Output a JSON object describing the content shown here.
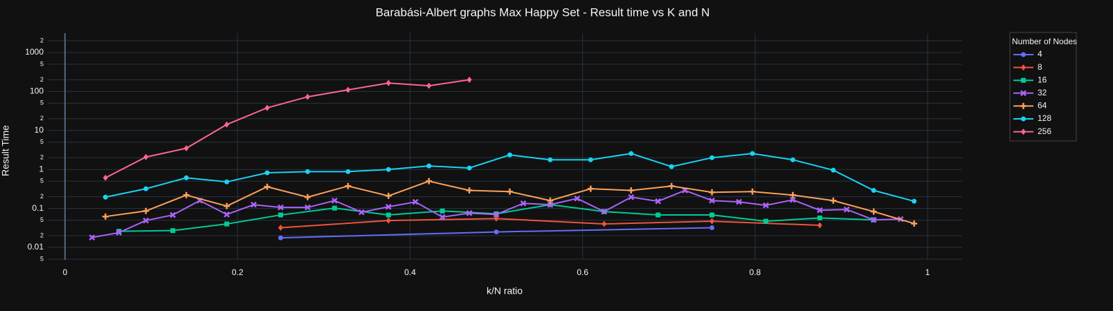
{
  "chart_data": {
    "type": "line",
    "title": "Barabási-Albert graphs Max Happy Set - Result time vs K and N",
    "x_label": "k/N ratio",
    "y_label": "Result Time",
    "legend_title": "Number of Nodes",
    "legend": "top-right",
    "log_y": true,
    "grid": true,
    "xlim": [
      -0.02,
      1.04
    ],
    "xticks": [
      0,
      0.2,
      0.4,
      0.6,
      0.8,
      1
    ],
    "ylim": [
      0.0048,
      3130
    ],
    "yticks": [
      {
        "value": 0.005,
        "label": "5"
      },
      0.01,
      {
        "value": 0.02,
        "label": "2"
      },
      {
        "value": 0.05,
        "label": "5"
      },
      0.1,
      {
        "value": 0.2,
        "label": "2"
      },
      {
        "value": 0.5,
        "label": "5"
      },
      1,
      {
        "value": 2,
        "label": "2"
      },
      {
        "value": 5,
        "label": "5"
      },
      10,
      {
        "value": 20,
        "label": "2"
      },
      {
        "value": 50,
        "label": "5"
      },
      100,
      {
        "value": 200,
        "label": "2"
      },
      {
        "value": 500,
        "label": "5"
      },
      1000,
      {
        "value": 2000,
        "label": "2"
      }
    ],
    "series": [
      {
        "name": "4",
        "color": "#636efa",
        "marker": "circle",
        "x": [
          0.25,
          0.5,
          0.75
        ],
        "values": [
          0.0176,
          0.025,
          0.032
        ]
      },
      {
        "name": "8",
        "color": "#EF553B",
        "marker": "diamond",
        "x": [
          0.25,
          0.375,
          0.5,
          0.625,
          0.75,
          0.875
        ],
        "values": [
          0.032,
          0.049,
          0.055,
          0.04,
          0.047,
          0.037
        ]
      },
      {
        "name": "16",
        "color": "#00cc96",
        "marker": "square",
        "x": [
          0.0625,
          0.125,
          0.1875,
          0.25,
          0.3125,
          0.375,
          0.4375,
          0.5,
          0.5625,
          0.625,
          0.6875,
          0.75,
          0.8125,
          0.875,
          0.9375
        ],
        "values": [
          0.026,
          0.027,
          0.04,
          0.068,
          0.102,
          0.068,
          0.086,
          0.073,
          0.125,
          0.083,
          0.068,
          0.068,
          0.047,
          0.057,
          0.051
        ]
      },
      {
        "name": "32",
        "color": "#ab63fa",
        "marker": "x",
        "x": [
          0.03125,
          0.0625,
          0.09375,
          0.125,
          0.15625,
          0.1875,
          0.21875,
          0.25,
          0.28125,
          0.3125,
          0.34375,
          0.375,
          0.40625,
          0.4375,
          0.46875,
          0.5,
          0.53125,
          0.5625,
          0.59375,
          0.625,
          0.65625,
          0.6875,
          0.71875,
          0.75,
          0.78125,
          0.8125,
          0.84375,
          0.875,
          0.90625,
          0.9375,
          0.96875
        ],
        "values": [
          0.018,
          0.024,
          0.049,
          0.068,
          0.159,
          0.07,
          0.125,
          0.106,
          0.106,
          0.159,
          0.08,
          0.11,
          0.147,
          0.06,
          0.076,
          0.07,
          0.135,
          0.125,
          0.18,
          0.083,
          0.195,
          0.153,
          0.29,
          0.159,
          0.147,
          0.12,
          0.166,
          0.09,
          0.094,
          0.051,
          0.053
        ]
      },
      {
        "name": "64",
        "color": "#FFA15A",
        "marker": "cross",
        "x": [
          0.046875,
          0.09375,
          0.140625,
          0.1875,
          0.234375,
          0.28125,
          0.328125,
          0.375,
          0.421875,
          0.46875,
          0.515625,
          0.5625,
          0.609375,
          0.65625,
          0.703125,
          0.75,
          0.796875,
          0.84375,
          0.890625,
          0.9375,
          0.984375
        ],
        "values": [
          0.062,
          0.086,
          0.22,
          0.115,
          0.36,
          0.195,
          0.375,
          0.21,
          0.5,
          0.29,
          0.27,
          0.159,
          0.32,
          0.29,
          0.375,
          0.26,
          0.27,
          0.22,
          0.159,
          0.083,
          0.041
        ]
      },
      {
        "name": "128",
        "color": "#19d3f3",
        "marker": "circle",
        "x": [
          0.046875,
          0.09375,
          0.140625,
          0.1875,
          0.234375,
          0.28125,
          0.328125,
          0.375,
          0.421875,
          0.46875,
          0.515625,
          0.5625,
          0.609375,
          0.65625,
          0.703125,
          0.75,
          0.796875,
          0.84375,
          0.890625,
          0.9375,
          0.984375
        ],
        "values": [
          0.195,
          0.32,
          0.61,
          0.48,
          0.82,
          0.88,
          0.88,
          1.0,
          1.23,
          1.09,
          2.36,
          1.77,
          1.77,
          2.56,
          1.18,
          2.0,
          2.56,
          1.77,
          0.96,
          0.29,
          0.153
        ]
      },
      {
        "name": "256",
        "color": "#FF6692",
        "marker": "diamond",
        "x": [
          0.046875,
          0.09375,
          0.140625,
          0.1875,
          0.234375,
          0.28125,
          0.328125,
          0.375,
          0.421875,
          0.46875
        ],
        "values": [
          0.61,
          2.08,
          3.5,
          14.2,
          38,
          73,
          110,
          165,
          140,
          200
        ]
      }
    ]
  }
}
